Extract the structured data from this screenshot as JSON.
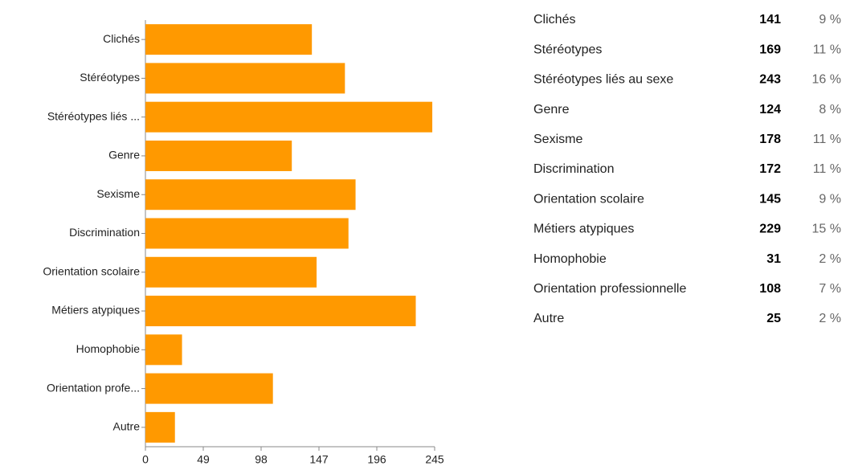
{
  "chart_data": {
    "type": "bar",
    "orientation": "horizontal",
    "categories": [
      "Clichés",
      "Stéréotypes",
      "Stéréotypes liés ...",
      "Genre",
      "Sexisme",
      "Discrimination",
      "Orientation scolaire",
      "Métiers atypiques",
      "Homophobie",
      "Orientation profe...",
      "Autre"
    ],
    "values": [
      141,
      169,
      243,
      124,
      178,
      172,
      145,
      229,
      31,
      108,
      25
    ],
    "color": "#ff9900",
    "xlim": [
      0,
      245
    ],
    "xticks": [
      0,
      49,
      98,
      147,
      196,
      245
    ]
  },
  "table": {
    "rows": [
      {
        "name": "Clichés",
        "percent": "9 %"
      },
      {
        "name": "Stéréotypes",
        "percent": "11 %"
      },
      {
        "name": "Stéréotypes liés au sexe",
        "percent": "16 %"
      },
      {
        "name": "Genre",
        "percent": "8 %"
      },
      {
        "name": "Sexisme",
        "percent": "11 %"
      },
      {
        "name": "Discrimination",
        "percent": "11 %"
      },
      {
        "name": "Orientation scolaire",
        "percent": "9 %"
      },
      {
        "name": "Métiers atypiques",
        "percent": "15 %"
      },
      {
        "name": "Homophobie",
        "percent": "2 %"
      },
      {
        "name": "Orientation professionnelle",
        "percent": "7 %"
      },
      {
        "name": "Autre",
        "percent": "2 %"
      }
    ]
  }
}
